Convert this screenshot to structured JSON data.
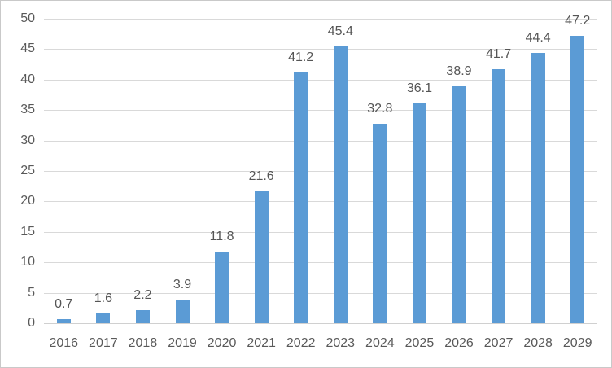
{
  "chart_data": {
    "type": "bar",
    "title": "",
    "xlabel": "",
    "ylabel": "",
    "categories": [
      "2016",
      "2017",
      "2018",
      "2019",
      "2020",
      "2021",
      "2022",
      "2023",
      "2024",
      "2025",
      "2026",
      "2027",
      "2028",
      "2029"
    ],
    "values": [
      0.7,
      1.6,
      2.2,
      3.9,
      11.8,
      21.6,
      41.2,
      45.4,
      32.8,
      36.1,
      38.9,
      41.7,
      44.4,
      47.2
    ],
    "data_labels": [
      "0.7",
      "1.6",
      "2.2",
      "3.9",
      "11.8",
      "21.6",
      "41.2",
      "45.4",
      "32.8",
      "36.1",
      "38.9",
      "41.7",
      "44.4",
      "47.2"
    ],
    "ylim": [
      0,
      50
    ],
    "ytick_interval": 5,
    "ytick_labels": [
      "0",
      "5",
      "10",
      "15",
      "20",
      "25",
      "30",
      "35",
      "40",
      "45",
      "50"
    ],
    "grid": true,
    "legend": "none",
    "colors": {
      "bar_fill": "#5b9bd5",
      "gridline": "#d9d9d9",
      "axis_line": "#d0d0d0",
      "tick_text": "#595959",
      "label_text": "#555555",
      "frame_border": "#c9c9c9",
      "background": "#ffffff"
    }
  }
}
